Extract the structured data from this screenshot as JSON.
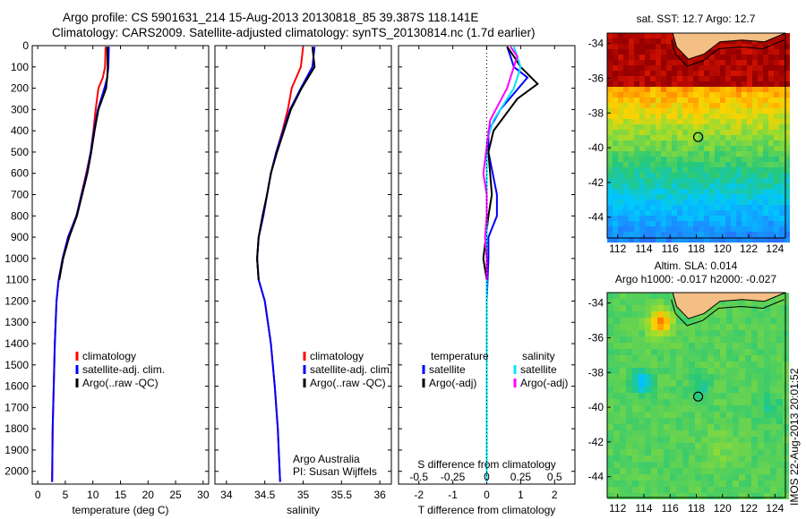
{
  "title_line1": "Argo profile: CS 5901631_214 15-Aug-2013 20130818_85 39.387S 118.141E",
  "title_line2": "Climatology: CARS2009. Satellite-adjusted climatology: synTS_20130814.nc (1.7d earlier)",
  "watermark": "IMOS 22-Aug-2013 20:01:52",
  "colors": {
    "climatology": "#ff0000",
    "satellite": "#0000ff",
    "argo": "#000000",
    "satellite_sal": "#00e5ff",
    "argo_sal": "#ff00ff"
  },
  "chart_data": [
    {
      "type": "line",
      "xlabel": "temperature (deg C)",
      "xlim": [
        -1,
        31
      ],
      "ylim": [
        2060,
        0
      ],
      "y_reversed": true,
      "xticks": [
        "0",
        "5",
        "10",
        "15",
        "20",
        "25",
        "30"
      ],
      "yticks": [
        "0",
        "100",
        "200",
        "300",
        "400",
        "500",
        "600",
        "700",
        "800",
        "900",
        "1000",
        "1100",
        "1200",
        "1300",
        "1400",
        "1500",
        "1600",
        "1700",
        "1800",
        "1900",
        "2000"
      ],
      "legend": [
        "climatology",
        "satellite-adj. clim.",
        "Argo(..raw -QC)"
      ],
      "series": [
        {
          "name": "climatology",
          "color": "#ff0000",
          "x": [
            12.3,
            12.2,
            11.8,
            11.0,
            10.5,
            10.1,
            9.6,
            8.8,
            7.0,
            5.5,
            4.5,
            3.8,
            3.4,
            3.1,
            2.9,
            2.7,
            2.6
          ],
          "y": [
            5,
            100,
            150,
            200,
            300,
            400,
            500,
            600,
            800,
            900,
            1000,
            1100,
            1200,
            1400,
            1600,
            1800,
            2050
          ]
        },
        {
          "name": "satellite-adj. clim.",
          "color": "#0000ff",
          "x": [
            12.9,
            12.8,
            12.6,
            12.1,
            10.9,
            10.2,
            9.6,
            8.9,
            7.0,
            5.5,
            4.5,
            3.8,
            3.4,
            3.1,
            2.9,
            2.7,
            2.6
          ],
          "y": [
            5,
            100,
            150,
            200,
            300,
            400,
            500,
            600,
            800,
            900,
            1000,
            1100,
            1200,
            1400,
            1600,
            1800,
            2050
          ]
        },
        {
          "name": "Argo(..raw -QC)",
          "color": "#000000",
          "x": [
            12.6,
            12.7,
            12.6,
            12.4,
            11.0,
            10.3,
            9.7,
            9.0,
            7.1,
            5.7,
            4.6,
            3.9
          ],
          "y": [
            5,
            100,
            150,
            200,
            300,
            400,
            500,
            600,
            800,
            900,
            1000,
            1100
          ]
        }
      ]
    },
    {
      "type": "line",
      "xlabel": "salinity",
      "xlim": [
        33.85,
        36.15
      ],
      "ylim": [
        2060,
        0
      ],
      "y_reversed": true,
      "xticks": [
        "34",
        "34.5",
        "35",
        "35.5",
        "36"
      ],
      "legend": [
        "climatology",
        "satellite-adj. clim.",
        "Argo(..raw -QC)"
      ],
      "annotation": [
        "Argo Australia",
        "PI: Susan Wijffels"
      ],
      "series": [
        {
          "name": "climatology",
          "color": "#ff0000",
          "x": [
            35.0,
            34.97,
            34.85,
            34.8,
            34.73,
            34.65,
            34.58,
            34.53,
            34.48,
            34.42,
            34.4,
            34.42,
            34.5,
            34.58,
            34.63,
            34.67,
            34.7
          ],
          "y": [
            5,
            100,
            200,
            300,
            400,
            500,
            600,
            700,
            800,
            900,
            1000,
            1100,
            1200,
            1400,
            1600,
            1800,
            2050
          ]
        },
        {
          "name": "satellite-adj. clim.",
          "color": "#0000ff",
          "x": [
            35.15,
            35.12,
            34.97,
            34.83,
            34.74,
            34.65,
            34.58,
            34.53,
            34.48,
            34.42,
            34.4,
            34.42,
            34.5,
            34.58,
            34.63,
            34.67,
            34.7
          ],
          "y": [
            5,
            100,
            200,
            300,
            400,
            500,
            600,
            700,
            800,
            900,
            1000,
            1100,
            1200,
            1400,
            1600,
            1800,
            2050
          ]
        },
        {
          "name": "Argo(..raw -QC)",
          "color": "#000000",
          "x": [
            35.12,
            35.15,
            34.98,
            34.84,
            34.75,
            34.66,
            34.58,
            34.53,
            34.47,
            34.42,
            34.4,
            34.42
          ],
          "y": [
            5,
            100,
            200,
            300,
            400,
            500,
            600,
            700,
            800,
            900,
            1000,
            1100
          ]
        }
      ]
    },
    {
      "type": "line",
      "xlabel": "T difference from climatology",
      "top_axis_label": "S difference from climatology",
      "xlim": [
        -2.6,
        2.6
      ],
      "ylim": [
        2060,
        0
      ],
      "y_reversed": true,
      "xticks": [
        "-2",
        "-1",
        "0",
        "1",
        "2"
      ],
      "top_ticks": [
        "-0.5",
        "-0.25",
        "0",
        "0.25",
        "0.5"
      ],
      "legend_temperature": [
        "temperature",
        "satellite",
        "Argo(-adj)"
      ],
      "legend_salinity": [
        "salinity",
        "satellite",
        "Argo(-adj)"
      ],
      "series": [
        {
          "name": "satellite",
          "color": "#0000ff",
          "x": [
            0.6,
            0.7,
            0.8,
            1.2,
            0.4,
            0.05,
            0.05,
            0.3,
            0.3,
            0.05,
            0.05,
            0.0,
            0.0,
            0.0,
            0.0
          ],
          "y": [
            5,
            50,
            100,
            150,
            300,
            400,
            500,
            700,
            800,
            900,
            1000,
            1200,
            1400,
            1800,
            1900
          ]
        },
        {
          "name": "Argo(-adj)",
          "color": "#000000",
          "x": [
            0.6,
            0.8,
            1.0,
            1.5,
            0.9,
            0.2,
            0.05,
            0.1,
            0.15,
            0.05,
            -0.1,
            0.0,
            0.0,
            0.0,
            0.0
          ],
          "y": [
            5,
            50,
            100,
            180,
            250,
            400,
            500,
            600,
            700,
            800,
            1000,
            1100,
            1400,
            1800,
            1900
          ]
        },
        {
          "name": "satellite",
          "color": "#00e5ff",
          "x": [
            0.8,
            0.9,
            1.0,
            0.8,
            0.2,
            0.0,
            0.0,
            0.0,
            0.0,
            0.0,
            0.0,
            0.0,
            0.0,
            0.0
          ],
          "y": [
            5,
            50,
            100,
            200,
            350,
            450,
            600,
            800,
            1000,
            1200,
            1400,
            1600,
            1800,
            2050
          ]
        },
        {
          "name": "Argo(-adj)",
          "color": "#ff00ff",
          "x": [
            0.7,
            0.9,
            0.8,
            0.6,
            0.1,
            -0.1,
            0.0,
            0.0,
            -0.05,
            0.0,
            0.0
          ],
          "y": [
            5,
            50,
            100,
            200,
            350,
            600,
            700,
            800,
            900,
            1000,
            1100
          ]
        }
      ]
    },
    {
      "type": "heatmap",
      "title": "sat. SST: 12.7 Argo: 12.7",
      "xlim": [
        111.2,
        124.8
      ],
      "ylim": [
        -45.2,
        -33.4
      ],
      "xticks": [
        "112",
        "114",
        "116",
        "118",
        "120",
        "122",
        "124"
      ],
      "yticks": [
        "-34",
        "-36",
        "-38",
        "-40",
        "-42",
        "-44"
      ],
      "argo_marker": {
        "lon": 118.141,
        "lat": -39.387
      }
    },
    {
      "type": "heatmap",
      "title_line1": "Altim. SLA: 0.014",
      "title_line2": "Argo h1000: -0.017 h2000: -0.027",
      "xlim": [
        111.2,
        124.8
      ],
      "ylim": [
        -45.2,
        -33.4
      ],
      "xticks": [
        "112",
        "114",
        "116",
        "118",
        "120",
        "122",
        "124"
      ],
      "yticks": [
        "-34",
        "-36",
        "-38",
        "-40",
        "-42",
        "-44"
      ],
      "argo_marker": {
        "lon": 118.141,
        "lat": -39.387
      }
    }
  ]
}
